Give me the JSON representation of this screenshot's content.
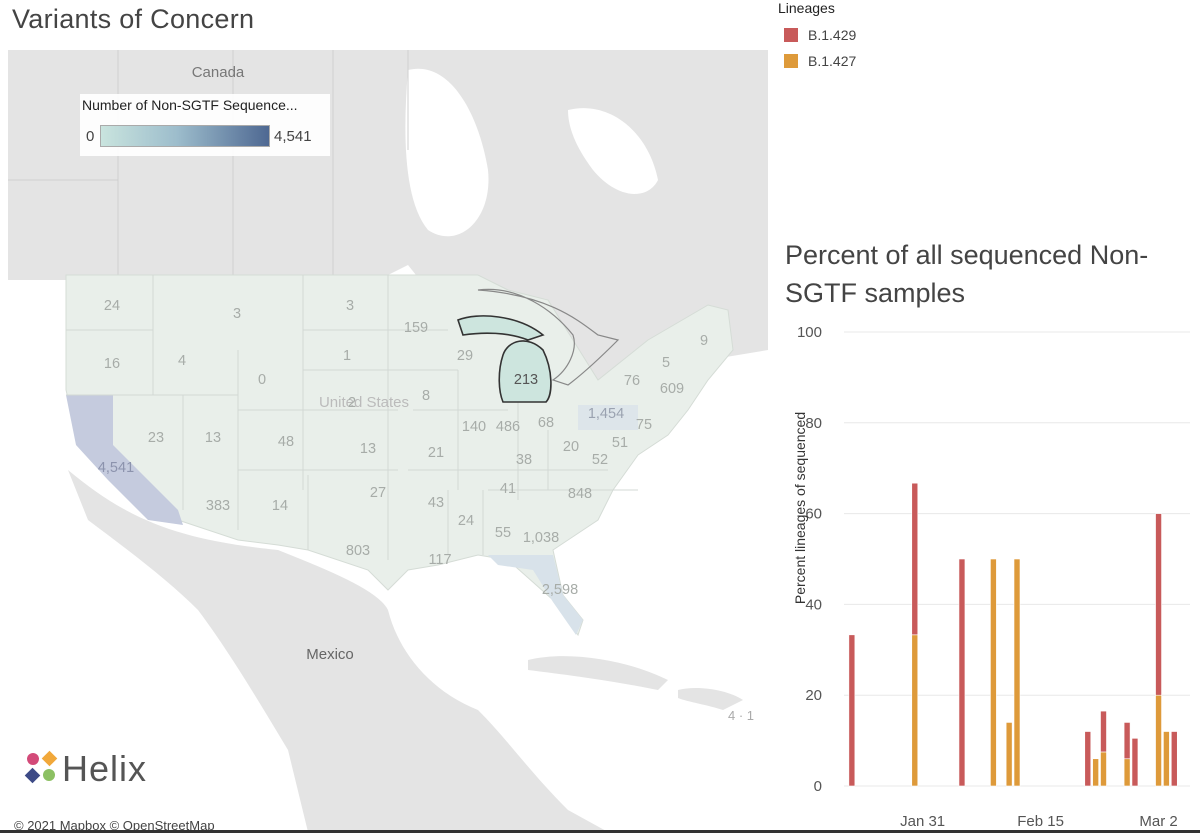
{
  "page": {
    "title": "Variants of Concern",
    "attribution": "© 2021 Mapbox  © OpenStreetMap",
    "logo_text": "Helix"
  },
  "map": {
    "legend_title": "Number of Non-SGTF Sequence...",
    "legend_min": "0",
    "legend_max": "4,541",
    "legend_colors": [
      "#c9e4de",
      "#9dbdcc",
      "#4e6892"
    ],
    "country_labels": [
      "Canada",
      "United States",
      "Mexico"
    ],
    "highlighted_state": "Michigan",
    "state_values": [
      {
        "state": "WA",
        "value": "24"
      },
      {
        "state": "OR",
        "value": "16"
      },
      {
        "state": "CA",
        "value": "4,541"
      },
      {
        "state": "ID",
        "value": "4"
      },
      {
        "state": "NV",
        "value": "23"
      },
      {
        "state": "MT",
        "value": "3"
      },
      {
        "state": "WY",
        "value": "0"
      },
      {
        "state": "UT",
        "value": "13"
      },
      {
        "state": "AZ",
        "value": "383"
      },
      {
        "state": "CO",
        "value": "48"
      },
      {
        "state": "NM",
        "value": "14"
      },
      {
        "state": "ND",
        "value": "3"
      },
      {
        "state": "SD",
        "value": "1"
      },
      {
        "state": "NE",
        "value": "2"
      },
      {
        "state": "KS",
        "value": "13"
      },
      {
        "state": "OK",
        "value": "27"
      },
      {
        "state": "TX",
        "value": "803"
      },
      {
        "state": "MN",
        "value": "159"
      },
      {
        "state": "IA",
        "value": "8"
      },
      {
        "state": "MO",
        "value": "21"
      },
      {
        "state": "AR",
        "value": "43"
      },
      {
        "state": "LA",
        "value": "117"
      },
      {
        "state": "WI",
        "value": "29"
      },
      {
        "state": "IL",
        "value": "140"
      },
      {
        "state": "MI",
        "value": "213"
      },
      {
        "state": "IN",
        "value": "486"
      },
      {
        "state": "OH",
        "value": "68"
      },
      {
        "state": "KY",
        "value": "38"
      },
      {
        "state": "TN",
        "value": "41"
      },
      {
        "state": "MS",
        "value": "24"
      },
      {
        "state": "AL",
        "value": "55"
      },
      {
        "state": "GA",
        "value": "1,038"
      },
      {
        "state": "FL",
        "value": "2,598"
      },
      {
        "state": "WV",
        "value": "20"
      },
      {
        "state": "VA",
        "value": "52"
      },
      {
        "state": "NC",
        "value": "848"
      },
      {
        "state": "PA",
        "value": "1,454"
      },
      {
        "state": "NY",
        "value": "76"
      },
      {
        "state": "NJ",
        "value": "75"
      },
      {
        "state": "MD",
        "value": "51"
      },
      {
        "state": "VT",
        "value": "5"
      },
      {
        "state": "ME",
        "value": "9"
      },
      {
        "state": "MA",
        "value": "609"
      }
    ]
  },
  "lineage_legend": {
    "title": "Lineages",
    "items": [
      {
        "label": "B.1.429",
        "color": "#c85a5a"
      },
      {
        "label": "B.1.427",
        "color": "#de9a3a"
      }
    ]
  },
  "chart_data": {
    "type": "bar",
    "stacked": true,
    "title": "Percent of all sequenced Non-SGTF samples",
    "ylabel": "Percent lineages of sequenced",
    "xlabel": "",
    "ylim": [
      0,
      100
    ],
    "yticks": [
      0,
      20,
      40,
      60,
      80,
      100
    ],
    "grid": true,
    "x_tick_labels": [
      {
        "label": "Jan 31",
        "date": "2021-01-31"
      },
      {
        "label": "Feb 15",
        "date": "2021-02-15"
      },
      {
        "label": "Mar 2",
        "date": "2021-03-02"
      }
    ],
    "x_range": [
      "2021-01-21",
      "2021-03-06"
    ],
    "dates": [
      "2021-01-22",
      "2021-01-30",
      "2021-02-05",
      "2021-02-09",
      "2021-02-11",
      "2021-02-12",
      "2021-02-21",
      "2021-02-22",
      "2021-02-23",
      "2021-02-26",
      "2021-02-27",
      "2021-03-02",
      "2021-03-03",
      "2021-03-04"
    ],
    "series": [
      {
        "name": "B.1.427",
        "color": "#de9a3a",
        "values": [
          0,
          33.3,
          0,
          50,
          14,
          50,
          0,
          6,
          7.5,
          6,
          0,
          20,
          12,
          0
        ]
      },
      {
        "name": "B.1.429",
        "color": "#c85a5a",
        "values": [
          33.3,
          33.4,
          50,
          0,
          0,
          0,
          12,
          0,
          9,
          8,
          10.5,
          40,
          0,
          12
        ]
      }
    ]
  }
}
